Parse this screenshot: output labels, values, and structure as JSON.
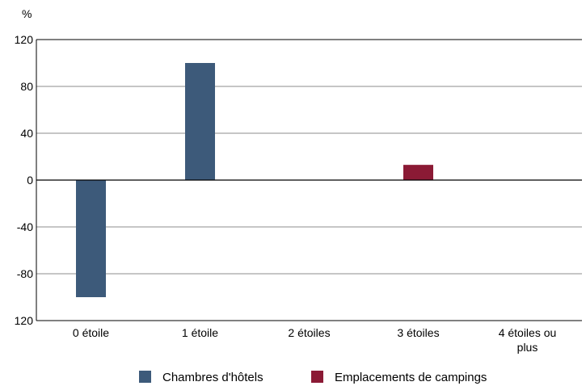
{
  "chart_data": {
    "type": "bar",
    "unit_label": "%",
    "categories": [
      [
        "0 étoile"
      ],
      [
        "1 étoile"
      ],
      [
        "2 étoiles"
      ],
      [
        "3 étoiles"
      ],
      [
        "4 étoiles ou",
        "plus"
      ]
    ],
    "series": [
      {
        "name": "Chambres d'hôtels",
        "color": "#3d5a7a",
        "values": [
          -100,
          100,
          0,
          0,
          0
        ]
      },
      {
        "name": "Emplacements de campings",
        "color": "#8b1a35",
        "values": [
          0,
          0,
          0,
          13,
          0
        ]
      }
    ],
    "ylim": [
      -120,
      120
    ],
    "yticks": [
      120,
      80,
      40,
      0,
      -40,
      -80,
      120
    ],
    "grid": true,
    "legend_position": "bottom"
  }
}
